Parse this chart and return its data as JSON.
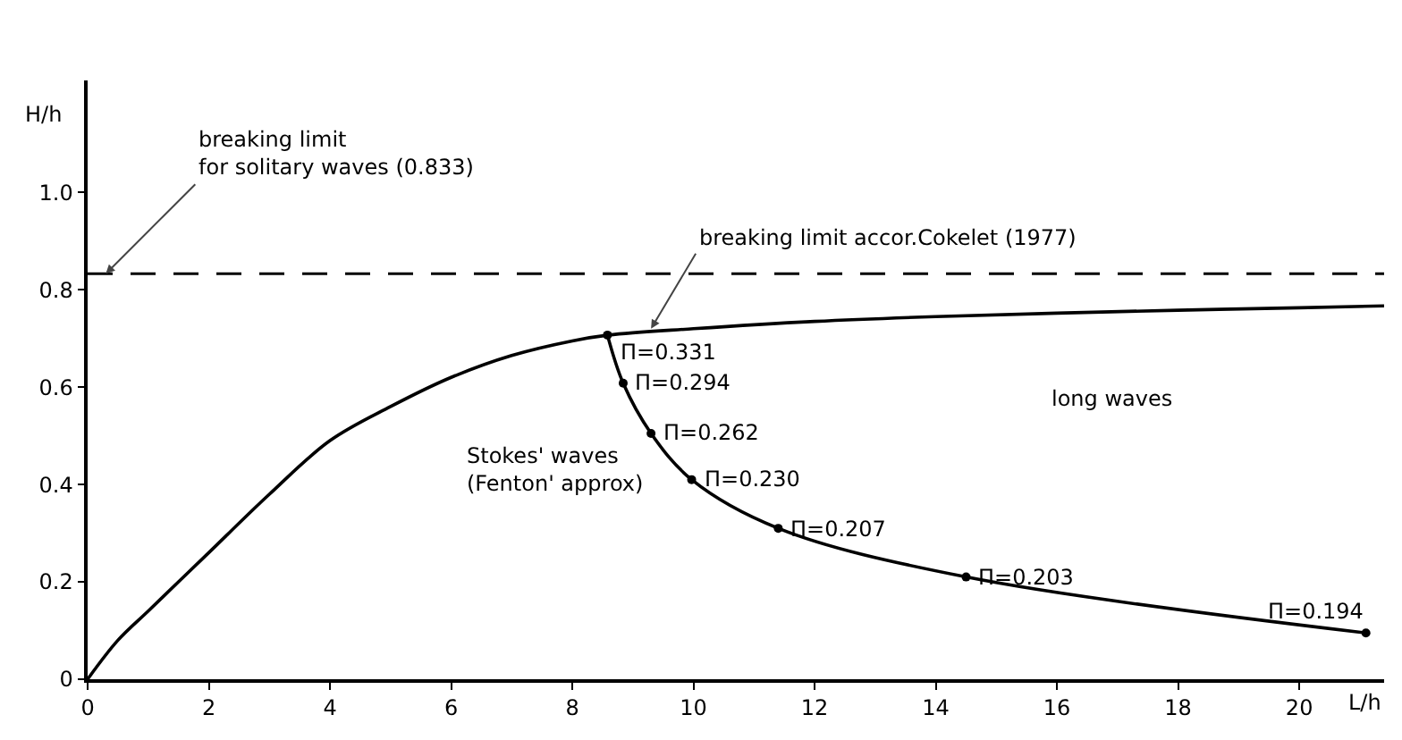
{
  "chart_data": {
    "type": "line",
    "xlabel": "L/h",
    "ylabel": "H/h",
    "xlim": [
      0,
      21.4
    ],
    "xticks": [
      0,
      2,
      4,
      6,
      8,
      10,
      12,
      14,
      16,
      18,
      20
    ],
    "ylim": [
      0,
      1.23
    ],
    "yticks": [
      0,
      0.2,
      0.4,
      0.6,
      0.8,
      {
        "value": 1,
        "label": "1.0"
      }
    ],
    "grid": false,
    "series": [
      {
        "color": "#000000",
        "marker": "none",
        "x": [
          0,
          0.5,
          1,
          1.5,
          2,
          3,
          4,
          5,
          6,
          7,
          8,
          8.6,
          10,
          12,
          14,
          16,
          18,
          20,
          21.4
        ],
        "values": [
          0,
          0.08,
          0.14,
          0.2,
          0.26,
          0.38,
          0.49,
          0.56,
          0.62,
          0.665,
          0.695,
          0.707,
          0.72,
          0.735,
          0.745,
          0.752,
          0.758,
          0.763,
          0.767
        ]
      },
      {
        "color": "#000000",
        "marker": "circle",
        "x": [
          8.58,
          8.84,
          9.3,
          9.97,
          11.4,
          14.5,
          21.1
        ],
        "values": [
          0.707,
          0.608,
          0.505,
          0.41,
          0.31,
          0.21,
          0.095
        ]
      }
    ],
    "ref_lines": [
      {
        "axis": "y",
        "value": 0.833,
        "color": "#000000",
        "line_style": "dashed"
      }
    ],
    "annotations": [
      {
        "text": "breaking limit\nfor solitary waves (0.833)",
        "x": 0.3,
        "y": 0.833
      },
      {
        "text": "breaking limit accor.Cokelet (1977)",
        "x": 9.3,
        "y": 0.72
      },
      "Stokes' waves\n(Fenton' approx)",
      "long waves",
      {
        "text": "Π=0.331",
        "x": 8.58,
        "y": 0.707
      },
      {
        "text": "Π=0.294",
        "x": 8.84,
        "y": 0.608
      },
      {
        "text": "Π=0.262",
        "x": 9.3,
        "y": 0.505
      },
      {
        "text": "Π=0.230",
        "x": 9.97,
        "y": 0.41
      },
      {
        "text": "Π=0.207",
        "x": 11.4,
        "y": 0.31
      },
      {
        "text": "Π=0.203",
        "x": 14.5,
        "y": 0.21
      },
      {
        "text": "Π=0.194",
        "x": 21.1,
        "y": 0.095
      }
    ]
  }
}
